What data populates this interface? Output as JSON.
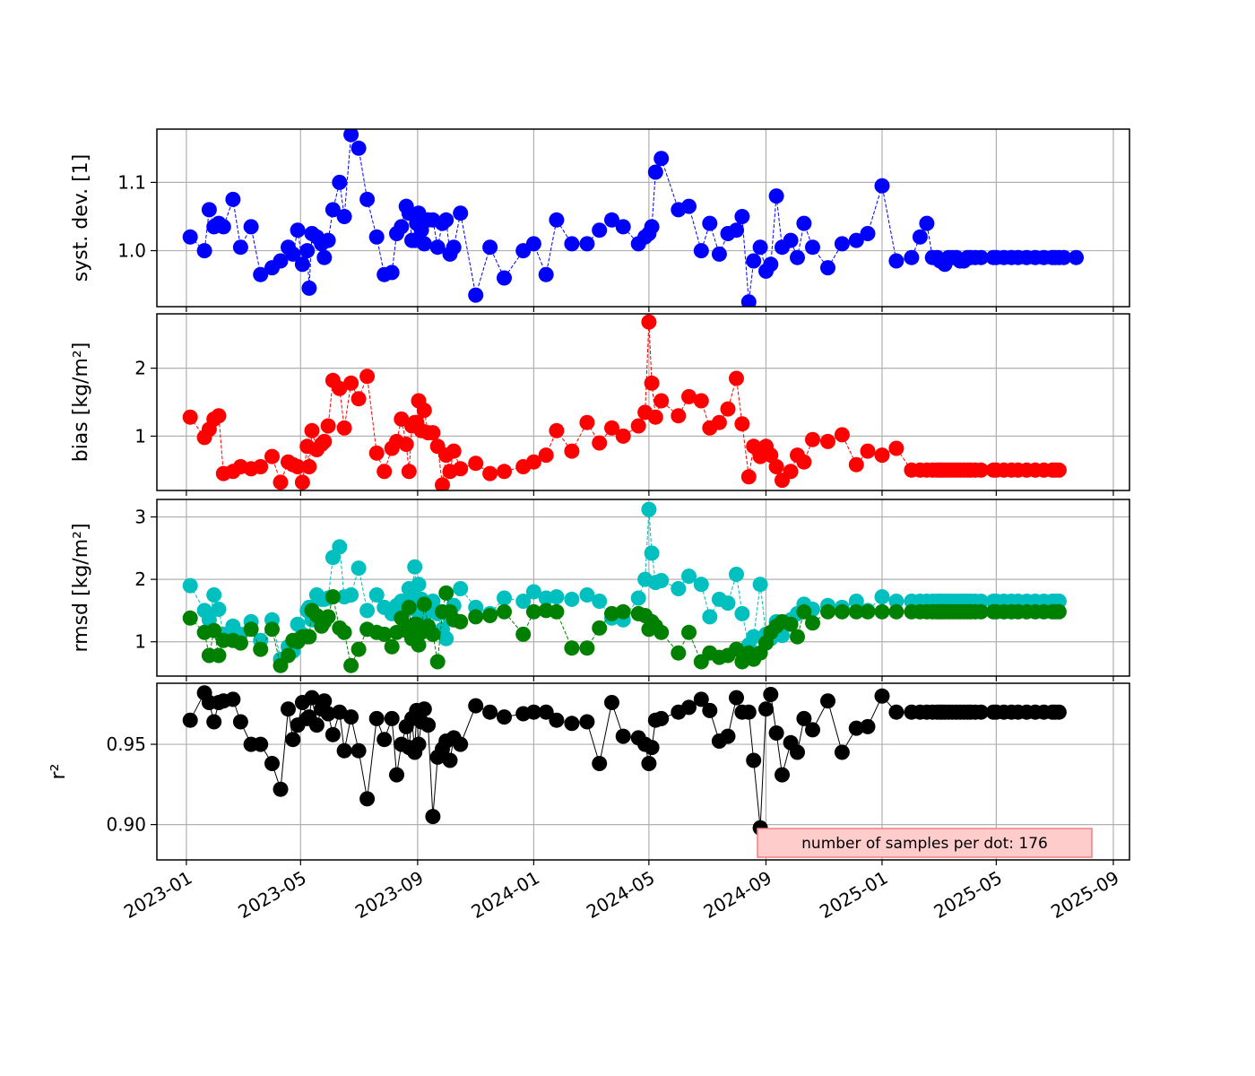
{
  "chart_data": {
    "type": "line",
    "shared_x_axis": true,
    "x_axis": {
      "type": "date",
      "range": [
        "2022-12-01",
        "2025-09-18"
      ],
      "ticks": [
        "2023-01-01",
        "2023-05-01",
        "2023-09-01",
        "2024-01-01",
        "2024-05-01",
        "2024-09-01",
        "2025-01-01",
        "2025-05-01",
        "2025-09-01"
      ],
      "tick_labels": [
        "2023-01",
        "2023-05",
        "2023-09",
        "2024-01",
        "2024-05",
        "2024-09",
        "2025-01",
        "2025-05",
        "2025-09"
      ],
      "tick_label_rotation_deg": 30
    },
    "grid": true,
    "dates": [
      "2023-01-05",
      "2023-01-20",
      "2023-01-25",
      "2023-01-30",
      "2023-02-04",
      "2023-02-09",
      "2023-02-19",
      "2023-02-27",
      "2023-03-10",
      "2023-03-20",
      "2023-04-01",
      "2023-04-10",
      "2023-04-18",
      "2023-04-23",
      "2023-04-28",
      "2023-05-03",
      "2023-05-08",
      "2023-05-10",
      "2023-05-13",
      "2023-05-18",
      "2023-05-23",
      "2023-05-26",
      "2023-05-30",
      "2023-06-04",
      "2023-06-11",
      "2023-06-16",
      "2023-06-23",
      "2023-07-01",
      "2023-07-10",
      "2023-07-20",
      "2023-07-28",
      "2023-08-05",
      "2023-08-10",
      "2023-08-15",
      "2023-08-20",
      "2023-08-23",
      "2023-08-26",
      "2023-08-29",
      "2023-08-31",
      "2023-09-02",
      "2023-09-05",
      "2023-09-08",
      "2023-09-12",
      "2023-09-17",
      "2023-09-22",
      "2023-09-27",
      "2023-10-01",
      "2023-10-05",
      "2023-10-09",
      "2023-10-16",
      "2023-11-01",
      "2023-11-16",
      "2023-12-01",
      "2023-12-21",
      "2024-01-01",
      "2024-01-14",
      "2024-01-25",
      "2024-02-10",
      "2024-02-26",
      "2024-03-10",
      "2024-03-23",
      "2024-04-04",
      "2024-04-20",
      "2024-04-27",
      "2024-05-01",
      "2024-05-04",
      "2024-05-08",
      "2024-05-14",
      "2024-06-01",
      "2024-06-12",
      "2024-06-25",
      "2024-07-04",
      "2024-07-14",
      "2024-07-23",
      "2024-08-01",
      "2024-08-07",
      "2024-08-14",
      "2024-08-19",
      "2024-08-26",
      "2024-09-01",
      "2024-09-06",
      "2024-09-12",
      "2024-09-18",
      "2024-09-27",
      "2024-10-04",
      "2024-10-11",
      "2024-10-20",
      "2024-11-05",
      "2024-11-20",
      "2024-12-05",
      "2024-12-17",
      "2025-01-01",
      "2025-01-16",
      "2025-02-01",
      "2025-02-10",
      "2025-02-17",
      "2025-02-23",
      "2025-02-28",
      "2025-03-03",
      "2025-03-05",
      "2025-03-08",
      "2025-03-12",
      "2025-03-16",
      "2025-03-20",
      "2025-03-24",
      "2025-03-28",
      "2025-04-01",
      "2025-04-04",
      "2025-04-09",
      "2025-04-15",
      "2025-04-28",
      "2025-05-01",
      "2025-05-09",
      "2025-05-17",
      "2025-05-24",
      "2025-06-02",
      "2025-06-11",
      "2025-06-20",
      "2025-06-29",
      "2025-07-02",
      "2025-07-06",
      "2025-07-11",
      "2025-07-24",
      "2025-08-07",
      "2025-08-28"
    ],
    "panels": [
      {
        "ylabel": "syst. dev. [1]",
        "ylim": [
          0.918,
          1.178
        ],
        "yticks": [
          1.0,
          1.1
        ],
        "ytick_labels": [
          "1.0",
          "1.1"
        ],
        "series": [
          {
            "color": "#0000ff",
            "linestyle": "dashed",
            "values": [
              1.02,
              1.0,
              1.06,
              1.035,
              1.04,
              1.035,
              1.075,
              1.005,
              1.035,
              0.965,
              0.975,
              0.985,
              1.005,
              0.995,
              1.03,
              0.98,
              1.0,
              0.945,
              1.025,
              1.02,
              1.01,
              0.99,
              1.015,
              1.06,
              1.1,
              1.05,
              1.17,
              1.15,
              1.075,
              1.02,
              0.965,
              0.968,
              1.025,
              1.035,
              1.065,
              1.055,
              1.015,
              1.015,
              1.04,
              1.055,
              1.03,
              1.01,
              1.045,
              1.045,
              1.005,
              1.04,
              1.045,
              0.995,
              1.005,
              1.055,
              0.935,
              1.005,
              0.96,
              1.0,
              1.01,
              0.965,
              1.045,
              1.01,
              1.01,
              1.03,
              1.045,
              1.035,
              1.01,
              1.02,
              1.025,
              1.035,
              1.115,
              1.135,
              1.06,
              1.065,
              1.0,
              1.04,
              0.995,
              1.025,
              1.03,
              1.05,
              0.925,
              0.985,
              1.005,
              0.97,
              0.98,
              1.08,
              1.005,
              1.015,
              0.99,
              1.04,
              1.005,
              0.975,
              1.01,
              1.015,
              1.025,
              1.095,
              0.985,
              0.99,
              1.02,
              1.04,
              0.99,
              0.99,
              0.985,
              0.985,
              0.98,
              0.99,
              0.99,
              0.99,
              0.985,
              0.985,
              0.99,
              0.99,
              0.99,
              0.99,
              0.99,
              0.99,
              0.99,
              0.99,
              0.99,
              0.99,
              0.99,
              0.99,
              0.99,
              0.99,
              0.99,
              0.99,
              0.99
            ]
          }
        ]
      },
      {
        "ylabel": "bias [kg/m²]",
        "ylim": [
          0.2,
          2.8
        ],
        "yticks": [
          1,
          2
        ],
        "ytick_labels": [
          "1",
          "2"
        ],
        "series": [
          {
            "color": "#ff0000",
            "linestyle": "dashed",
            "values": [
              1.28,
              0.98,
              1.1,
              1.25,
              1.3,
              0.45,
              0.48,
              0.55,
              0.52,
              0.55,
              0.7,
              0.32,
              0.62,
              0.58,
              0.55,
              0.32,
              0.85,
              0.55,
              1.08,
              0.8,
              0.88,
              0.92,
              1.15,
              1.82,
              1.7,
              1.12,
              1.78,
              1.55,
              1.88,
              0.75,
              0.48,
              0.82,
              0.92,
              1.25,
              0.88,
              0.48,
              1.15,
              1.2,
              1.2,
              1.52,
              1.08,
              1.38,
              1.05,
              1.05,
              0.85,
              0.28,
              0.72,
              0.48,
              0.78,
              0.52,
              0.6,
              0.45,
              0.48,
              0.55,
              0.62,
              0.72,
              1.08,
              0.78,
              1.2,
              0.9,
              1.12,
              1.0,
              1.15,
              1.35,
              2.68,
              1.78,
              1.28,
              1.52,
              1.3,
              1.58,
              1.52,
              1.12,
              1.2,
              1.4,
              1.85,
              1.18,
              0.4,
              0.85,
              0.7,
              0.85,
              0.72,
              0.55,
              0.35,
              0.48,
              0.72,
              0.62,
              0.95,
              0.92,
              1.02,
              0.58,
              0.78,
              0.72,
              0.82,
              0.5,
              0.5,
              0.5,
              0.5,
              0.5,
              0.5,
              0.5,
              0.5,
              0.5,
              0.5,
              0.5,
              0.5,
              0.5,
              0.5,
              0.5,
              0.5,
              0.5,
              0.5,
              0.5,
              0.5,
              0.5,
              0.5,
              0.5,
              0.5,
              0.5,
              0.5,
              0.5,
              0.5
            ]
          }
        ]
      },
      {
        "ylabel": "rmsd [kg/m²]",
        "ylim": [
          0.45,
          3.28
        ],
        "yticks": [
          1,
          2,
          3
        ],
        "ytick_labels": [
          "1",
          "2",
          "3"
        ],
        "series": [
          {
            "color": "#00bfbf",
            "linestyle": "dashed",
            "values": [
              1.9,
              1.5,
              1.35,
              1.75,
              1.52,
              1.12,
              1.25,
              1.12,
              1.32,
              1.02,
              1.35,
              0.72,
              0.92,
              0.85,
              1.28,
              1.12,
              1.5,
              1.55,
              1.35,
              1.75,
              1.68,
              1.68,
              1.7,
              2.35,
              2.52,
              1.72,
              1.75,
              2.18,
              1.5,
              1.75,
              1.55,
              1.45,
              1.58,
              1.65,
              1.52,
              1.85,
              1.75,
              2.2,
              1.5,
              1.92,
              1.68,
              1.42,
              1.48,
              1.65,
              1.45,
              1.2,
              1.05,
              1.38,
              1.58,
              1.85,
              1.55,
              1.45,
              1.7,
              1.65,
              1.8,
              1.7,
              1.72,
              1.68,
              1.75,
              1.65,
              1.38,
              1.35,
              1.7,
              2.0,
              3.12,
              2.42,
              1.95,
              1.98,
              1.85,
              2.05,
              1.92,
              1.4,
              1.68,
              1.62,
              2.08,
              1.45,
              0.95,
              1.08,
              1.92,
              1.12,
              1.05,
              1.32,
              1.1,
              1.35,
              1.45,
              1.6,
              1.52,
              1.58,
              1.55,
              1.65,
              1.5,
              1.72,
              1.65,
              1.65,
              1.65,
              1.65,
              1.65,
              1.65,
              1.65,
              1.65,
              1.65,
              1.65,
              1.65,
              1.65,
              1.65,
              1.65,
              1.65,
              1.65,
              1.65,
              1.65,
              1.65,
              1.65,
              1.65,
              1.65,
              1.65,
              1.65,
              1.65,
              1.65,
              1.65,
              1.65,
              1.65
            ]
          },
          {
            "color": "#008000",
            "linestyle": "dashed",
            "values": [
              1.38,
              1.15,
              0.78,
              1.18,
              0.78,
              1.02,
              1.02,
              0.98,
              1.2,
              0.88,
              1.2,
              0.62,
              0.78,
              1.02,
              1.0,
              1.08,
              1.08,
              1.08,
              1.5,
              1.42,
              1.25,
              1.32,
              1.4,
              1.72,
              1.22,
              1.15,
              0.62,
              0.88,
              1.2,
              1.15,
              1.12,
              0.92,
              1.15,
              1.38,
              1.18,
              1.55,
              1.05,
              1.28,
              1.28,
              0.95,
              1.15,
              1.6,
              1.25,
              1.12,
              0.68,
              1.48,
              1.78,
              1.48,
              1.35,
              1.32,
              1.4,
              1.42,
              1.48,
              1.12,
              1.48,
              1.5,
              1.48,
              0.9,
              0.9,
              1.22,
              1.45,
              1.48,
              1.45,
              1.42,
              1.2,
              1.32,
              1.25,
              1.15,
              0.82,
              1.15,
              0.68,
              0.82,
              0.75,
              0.78,
              0.88,
              0.68,
              0.82,
              0.72,
              0.82,
              0.98,
              1.15,
              1.25,
              1.32,
              1.28,
              1.08,
              1.48,
              1.3,
              1.48,
              1.48,
              1.48,
              1.48,
              1.48,
              1.48,
              1.48,
              1.48,
              1.48,
              1.48,
              1.48,
              1.48,
              1.48,
              1.48,
              1.48,
              1.48,
              1.48,
              1.48,
              1.48,
              1.48,
              1.48,
              1.48,
              1.48,
              1.48,
              1.48,
              1.48,
              1.48,
              1.48,
              1.48,
              1.48,
              1.48,
              1.48,
              1.48,
              1.48
            ]
          }
        ]
      },
      {
        "ylabel": "r²",
        "ylim": [
          0.878,
          0.988
        ],
        "yticks": [
          0.9,
          0.95
        ],
        "ytick_labels": [
          "0.90",
          "0.95"
        ],
        "annotation": "number of samples per dot: 176",
        "annotation_position": "bottom-right",
        "series": [
          {
            "color": "#000000",
            "linestyle": "solid",
            "values": [
              0.965,
              0.982,
              0.976,
              0.964,
              0.976,
              0.977,
              0.978,
              0.964,
              0.95,
              0.95,
              0.938,
              0.922,
              0.972,
              0.953,
              0.962,
              0.976,
              0.966,
              0.967,
              0.979,
              0.962,
              0.972,
              0.977,
              0.969,
              0.956,
              0.97,
              0.946,
              0.967,
              0.946,
              0.916,
              0.966,
              0.953,
              0.966,
              0.931,
              0.95,
              0.961,
              0.948,
              0.966,
              0.945,
              0.971,
              0.95,
              0.964,
              0.972,
              0.962,
              0.905,
              0.942,
              0.947,
              0.952,
              0.94,
              0.954,
              0.95,
              0.974,
              0.97,
              0.967,
              0.969,
              0.97,
              0.97,
              0.965,
              0.963,
              0.964,
              0.938,
              0.976,
              0.955,
              0.954,
              0.95,
              0.938,
              0.948,
              0.965,
              0.966,
              0.97,
              0.973,
              0.978,
              0.971,
              0.952,
              0.955,
              0.979,
              0.97,
              0.97,
              0.94,
              0.898,
              0.972,
              0.981,
              0.957,
              0.931,
              0.951,
              0.945,
              0.966,
              0.959,
              0.977,
              0.945,
              0.96,
              0.961,
              0.98,
              0.97,
              0.97,
              0.97,
              0.97,
              0.97,
              0.97,
              0.97,
              0.97,
              0.97,
              0.97,
              0.97,
              0.97,
              0.97,
              0.97,
              0.97,
              0.97,
              0.97,
              0.97,
              0.97,
              0.97,
              0.97,
              0.97,
              0.97,
              0.97,
              0.97,
              0.97,
              0.97,
              0.97,
              0.97
            ]
          }
        ]
      }
    ]
  }
}
